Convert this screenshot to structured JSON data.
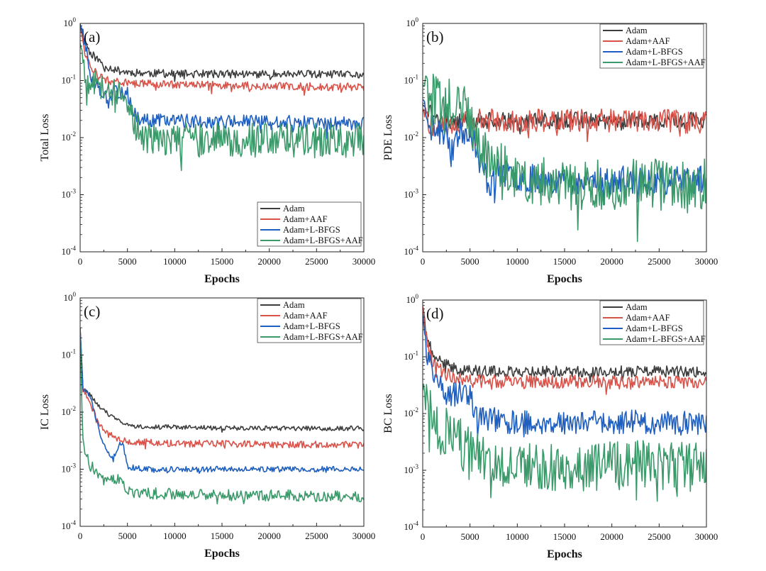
{
  "chart_data": [
    {
      "type": "line",
      "panel_label": "(a)",
      "xlabel": "Epochs",
      "ylabel": "Total Loss",
      "yscale": "log",
      "ylim": [
        0.0001,
        1
      ],
      "xlim": [
        0,
        30000
      ],
      "xticks": [
        "0",
        "5000",
        "10000",
        "15000",
        "20000",
        "25000",
        "30000"
      ],
      "yticks": [
        {
          "base": "10",
          "exp": "0"
        },
        {
          "base": "10",
          "exp": "-1"
        },
        {
          "base": "10",
          "exp": "-2"
        },
        {
          "base": "10",
          "exp": "-3"
        },
        {
          "base": "10",
          "exp": "-4"
        }
      ],
      "legend_position": "bottom-right",
      "series": [
        {
          "name": "Adam",
          "color": "#3d3d3d",
          "x": [
            0,
            500,
            1000,
            2000,
            3000,
            4000,
            5000,
            7000,
            10000,
            15000,
            20000,
            25000,
            30000
          ],
          "y": [
            1.0,
            0.5,
            0.32,
            0.22,
            0.17,
            0.15,
            0.14,
            0.135,
            0.13,
            0.13,
            0.13,
            0.128,
            0.125
          ],
          "noise": 0.07,
          "seed": 11
        },
        {
          "name": "Adam+AAF",
          "color": "#d9534a",
          "x": [
            0,
            500,
            1000,
            2000,
            3000,
            5000,
            10000,
            15000,
            20000,
            25000,
            30000
          ],
          "y": [
            1.0,
            0.3,
            0.18,
            0.12,
            0.1,
            0.09,
            0.085,
            0.082,
            0.08,
            0.078,
            0.077
          ],
          "noise": 0.07,
          "seed": 12
        },
        {
          "name": "Adam+L-BFGS",
          "color": "#1f5fbf",
          "x": [
            0,
            500,
            1000,
            1500,
            2500,
            3000,
            3500,
            4500,
            5000,
            5500,
            6000,
            7000,
            10000,
            15000,
            20000,
            25000,
            30000
          ],
          "y": [
            1.0,
            0.45,
            0.15,
            0.09,
            0.06,
            0.04,
            0.06,
            0.065,
            0.06,
            0.03,
            0.023,
            0.02,
            0.02,
            0.019,
            0.019,
            0.018,
            0.018
          ],
          "noise": 0.12,
          "seed": 13
        },
        {
          "name": "Adam+L-BFGS+AAF",
          "color": "#3a9a6a",
          "x": [
            0,
            500,
            1000,
            2000,
            3000,
            4000,
            5000,
            5500,
            6000,
            7000,
            10000,
            15000,
            20000,
            25000,
            30000
          ],
          "y": [
            0.5,
            0.15,
            0.1,
            0.08,
            0.07,
            0.06,
            0.05,
            0.02,
            0.013,
            0.01,
            0.009,
            0.009,
            0.009,
            0.009,
            0.009
          ],
          "noise": 0.3,
          "seed": 14
        }
      ]
    },
    {
      "type": "line",
      "panel_label": "(b)",
      "xlabel": "Epochs",
      "ylabel": "PDE  Loss",
      "yscale": "log",
      "ylim": [
        0.0001,
        1
      ],
      "xlim": [
        0,
        30000
      ],
      "xticks": [
        "0",
        "5000",
        "10000",
        "15000",
        "20000",
        "25000",
        "30000"
      ],
      "yticks": [
        {
          "base": "10",
          "exp": "0"
        },
        {
          "base": "10",
          "exp": "-1"
        },
        {
          "base": "10",
          "exp": "-2"
        },
        {
          "base": "10",
          "exp": "-3"
        },
        {
          "base": "10",
          "exp": "-4"
        }
      ],
      "legend_position": "top-right",
      "series": [
        {
          "name": "Adam",
          "color": "#3d3d3d",
          "x": [
            0,
            1000,
            2000,
            4000,
            6000,
            8000,
            10000,
            15000,
            20000,
            25000,
            30000
          ],
          "y": [
            0.04,
            0.025,
            0.02,
            0.02,
            0.02,
            0.02,
            0.02,
            0.02,
            0.02,
            0.02,
            0.02
          ],
          "noise": 0.15,
          "seed": 21
        },
        {
          "name": "Adam+AAF",
          "color": "#d9534a",
          "x": [
            0,
            1000,
            2000,
            4000,
            6000,
            8000,
            10000,
            15000,
            20000,
            25000,
            30000
          ],
          "y": [
            0.03,
            0.015,
            0.015,
            0.018,
            0.02,
            0.02,
            0.02,
            0.02,
            0.02,
            0.02,
            0.018
          ],
          "noise": 0.2,
          "seed": 22
        },
        {
          "name": "Adam+L-BFGS",
          "color": "#1f5fbf",
          "x": [
            0,
            1000,
            2000,
            3000,
            4000,
            5000,
            5500,
            6000,
            7000,
            8000,
            10000,
            15000,
            20000,
            25000,
            30000
          ],
          "y": [
            0.05,
            0.015,
            0.012,
            0.01,
            0.012,
            0.015,
            0.008,
            0.004,
            0.0015,
            0.0025,
            0.002,
            0.0018,
            0.0018,
            0.0018,
            0.0018
          ],
          "noise": 0.25,
          "seed": 23
        },
        {
          "name": "Adam+L-BFGS+AAF",
          "color": "#3a9a6a",
          "x": [
            0,
            500,
            1000,
            2000,
            3000,
            4000,
            5000,
            5500,
            6000,
            7000,
            8000,
            10000,
            15000,
            20000,
            25000,
            30000
          ],
          "y": [
            0.1,
            0.07,
            0.05,
            0.04,
            0.04,
            0.04,
            0.02,
            0.012,
            0.008,
            0.004,
            0.003,
            0.002,
            0.0015,
            0.0015,
            0.0015,
            0.0015
          ],
          "noise": 0.45,
          "seed": 24
        }
      ]
    },
    {
      "type": "line",
      "panel_label": "(c)",
      "xlabel": "Epochs",
      "ylabel": "IC Loss",
      "yscale": "log",
      "ylim": [
        0.0001,
        1
      ],
      "xlim": [
        0,
        30000
      ],
      "xticks": [
        "0",
        "5000",
        "10000",
        "15000",
        "20000",
        "25000",
        "30000"
      ],
      "yticks": [
        {
          "base": "10",
          "exp": "0"
        },
        {
          "base": "10",
          "exp": "-1"
        },
        {
          "base": "10",
          "exp": "-2"
        },
        {
          "base": "10",
          "exp": "-3"
        },
        {
          "base": "10",
          "exp": "-4"
        }
      ],
      "legend_position": "top-right",
      "series": [
        {
          "name": "Adam",
          "color": "#3d3d3d",
          "x": [
            0,
            300,
            1000,
            2000,
            3000,
            4000,
            5000,
            7000,
            10000,
            15000,
            20000,
            25000,
            30000
          ],
          "y": [
            0.3,
            0.025,
            0.02,
            0.013,
            0.009,
            0.007,
            0.006,
            0.0055,
            0.0055,
            0.0053,
            0.0052,
            0.0052,
            0.0052
          ],
          "noise": 0.04,
          "seed": 31
        },
        {
          "name": "Adam+AAF",
          "color": "#d9534a",
          "x": [
            0,
            300,
            1000,
            2000,
            3000,
            4000,
            5000,
            7000,
            10000,
            15000,
            20000,
            25000,
            30000
          ],
          "y": [
            0.3,
            0.025,
            0.015,
            0.006,
            0.004,
            0.0035,
            0.003,
            0.003,
            0.0028,
            0.0028,
            0.0027,
            0.0027,
            0.0027
          ],
          "noise": 0.06,
          "seed": 32
        },
        {
          "name": "Adam+L-BFGS",
          "color": "#1f5fbf",
          "x": [
            0,
            300,
            1000,
            1500,
            2000,
            2500,
            3000,
            3500,
            4000,
            4500,
            5000,
            7000,
            10000,
            15000,
            20000,
            25000,
            30000
          ],
          "y": [
            0.3,
            0.025,
            0.02,
            0.01,
            0.005,
            0.0028,
            0.002,
            0.0015,
            0.0025,
            0.003,
            0.0011,
            0.001,
            0.001,
            0.001,
            0.001,
            0.001,
            0.001
          ],
          "noise": 0.05,
          "seed": 33
        },
        {
          "name": "Adam+L-BFGS+AAF",
          "color": "#3a9a6a",
          "x": [
            0,
            300,
            1000,
            2000,
            3000,
            4000,
            5000,
            7000,
            10000,
            15000,
            20000,
            25000,
            30000
          ],
          "y": [
            0.3,
            0.003,
            0.0012,
            0.0008,
            0.0006,
            0.0007,
            0.0004,
            0.00038,
            0.00037,
            0.00035,
            0.00035,
            0.00034,
            0.00033
          ],
          "noise": 0.1,
          "seed": 34
        }
      ]
    },
    {
      "type": "line",
      "panel_label": "(d)",
      "xlabel": "Epochs",
      "ylabel": "BC Loss",
      "yscale": "log",
      "ylim": [
        0.0001,
        1
      ],
      "xlim": [
        0,
        30000
      ],
      "xticks": [
        "0",
        "5000",
        "10000",
        "15000",
        "20000",
        "25000",
        "30000"
      ],
      "yticks": [
        {
          "base": "10",
          "exp": "0"
        },
        {
          "base": "10",
          "exp": "-1"
        },
        {
          "base": "10",
          "exp": "-2"
        },
        {
          "base": "10",
          "exp": "-3"
        },
        {
          "base": "10",
          "exp": "-4"
        }
      ],
      "legend_position": "top-right",
      "series": [
        {
          "name": "Adam",
          "color": "#3d3d3d",
          "x": [
            0,
            500,
            1000,
            2000,
            3000,
            4000,
            5000,
            7000,
            10000,
            15000,
            20000,
            25000,
            30000
          ],
          "y": [
            0.8,
            0.2,
            0.12,
            0.08,
            0.065,
            0.06,
            0.058,
            0.055,
            0.055,
            0.055,
            0.055,
            0.055,
            0.055
          ],
          "noise": 0.1,
          "seed": 41
        },
        {
          "name": "Adam+AAF",
          "color": "#d9534a",
          "x": [
            0,
            500,
            1000,
            2000,
            3000,
            4000,
            5000,
            7000,
            10000,
            15000,
            20000,
            25000,
            30000
          ],
          "y": [
            0.8,
            0.15,
            0.08,
            0.055,
            0.045,
            0.04,
            0.038,
            0.037,
            0.036,
            0.036,
            0.035,
            0.035,
            0.035
          ],
          "noise": 0.12,
          "seed": 42
        },
        {
          "name": "Adam+L-BFGS",
          "color": "#1f5fbf",
          "x": [
            0,
            500,
            1000,
            2000,
            3000,
            4000,
            5000,
            5500,
            6000,
            7000,
            10000,
            15000,
            20000,
            25000,
            30000
          ],
          "y": [
            0.6,
            0.1,
            0.05,
            0.03,
            0.02,
            0.025,
            0.02,
            0.012,
            0.009,
            0.008,
            0.007,
            0.007,
            0.007,
            0.007,
            0.007
          ],
          "noise": 0.22,
          "seed": 43
        },
        {
          "name": "Adam+L-BFGS+AAF",
          "color": "#3a9a6a",
          "x": [
            0,
            500,
            1000,
            2000,
            3000,
            4000,
            5000,
            6000,
            7000,
            10000,
            15000,
            20000,
            25000,
            30000
          ],
          "y": [
            0.03,
            0.012,
            0.008,
            0.005,
            0.004,
            0.003,
            0.002,
            0.0015,
            0.0012,
            0.0012,
            0.0012,
            0.0012,
            0.0012,
            0.0012
          ],
          "noise": 0.45,
          "seed": 44
        }
      ]
    }
  ]
}
